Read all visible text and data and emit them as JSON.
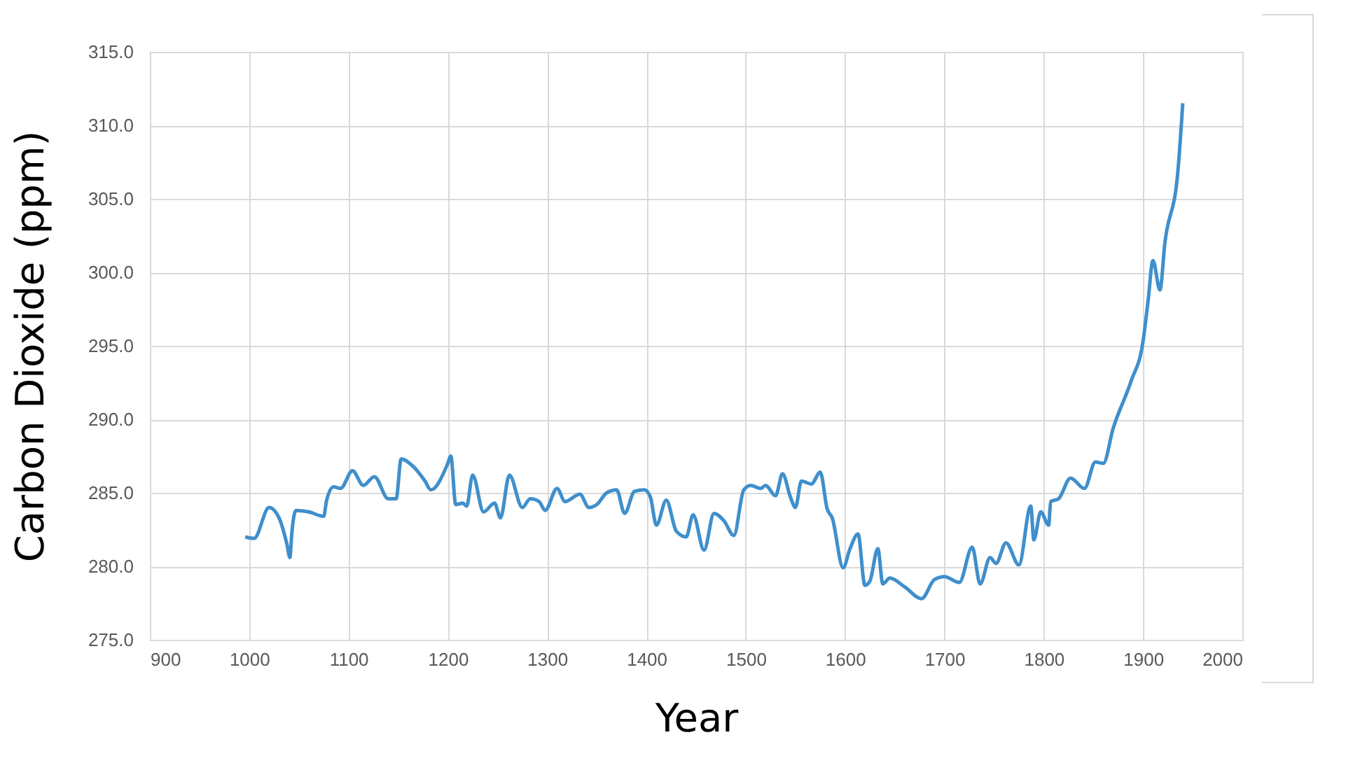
{
  "chart_data": {
    "type": "line",
    "xlabel": "Year",
    "ylabel": "Carbon Dioxide (ppm)",
    "x": [
      996,
      1005,
      1020,
      1030,
      1038,
      1041,
      1043,
      1047,
      1060,
      1075,
      1078,
      1085,
      1092,
      1104,
      1115,
      1126,
      1140,
      1148,
      1153,
      1165,
      1177,
      1183,
      1200,
      1203,
      1208,
      1215,
      1219,
      1225,
      1236,
      1247,
      1253,
      1262,
      1275,
      1283,
      1292,
      1298,
      1310,
      1318,
      1333,
      1342,
      1350,
      1360,
      1370,
      1378,
      1388,
      1398,
      1404,
      1410,
      1420,
      1430,
      1440,
      1447,
      1458,
      1468,
      1478,
      1488,
      1498,
      1505,
      1515,
      1520,
      1530,
      1537,
      1545,
      1550,
      1556,
      1566,
      1575,
      1582,
      1587,
      1598,
      1605,
      1613,
      1620,
      1625,
      1633,
      1638,
      1645,
      1660,
      1677,
      1690,
      1700,
      1715,
      1728,
      1736,
      1746,
      1752,
      1762,
      1775,
      1787,
      1790,
      1797,
      1805,
      1807,
      1815,
      1827,
      1841,
      1852,
      1860,
      1870,
      1888,
      1900,
      1905,
      1910,
      1917,
      1922,
      1935,
      1940
    ],
    "series": [
      {
        "color": "#3f8fcc",
        "values": [
          282.0,
          281.9,
          284.0,
          283.3,
          281.5,
          280.6,
          282.3,
          283.8,
          283.7,
          283.4,
          284.5,
          285.4,
          285.3,
          286.5,
          285.5,
          286.1,
          284.6,
          284.6,
          287.3,
          286.8,
          285.8,
          285.2,
          287.0,
          287.5,
          284.2,
          284.3,
          284.1,
          286.2,
          283.7,
          284.3,
          283.3,
          286.2,
          284.0,
          284.6,
          284.4,
          283.8,
          285.3,
          284.4,
          284.9,
          284.0,
          284.2,
          285.0,
          285.2,
          283.6,
          285.1,
          285.2,
          284.7,
          282.8,
          284.5,
          282.4,
          282.0,
          283.5,
          281.1,
          283.6,
          283.1,
          282.1,
          285.2,
          285.5,
          285.3,
          285.5,
          284.8,
          286.3,
          284.7,
          284.0,
          285.8,
          285.6,
          286.4,
          283.9,
          283.3,
          279.9,
          281.2,
          282.2,
          278.7,
          279.0,
          281.2,
          278.8,
          279.2,
          278.6,
          277.8,
          279.1,
          279.3,
          278.9,
          281.3,
          278.8,
          280.6,
          280.2,
          281.6,
          280.1,
          284.1,
          281.8,
          283.7,
          282.8,
          284.4,
          284.6,
          286.0,
          285.3,
          287.1,
          287.0,
          289.4,
          292.6,
          295.3,
          298.0,
          300.8,
          298.8,
          302.0,
          306.8,
          311.5
        ]
      }
    ],
    "xlim": [
      900,
      2000
    ],
    "xticks": [
      900,
      1000,
      1100,
      1200,
      1300,
      1400,
      1500,
      1600,
      1700,
      1800,
      1900,
      2000
    ],
    "ylim": [
      275,
      315
    ],
    "yticks": [
      {
        "value": 275,
        "label": "275.0"
      },
      {
        "value": 280,
        "label": "280.0"
      },
      {
        "value": 285,
        "label": "285.0"
      },
      {
        "value": 290,
        "label": "290.0"
      },
      {
        "value": 295,
        "label": "295.0"
      },
      {
        "value": 300,
        "label": "300.0"
      },
      {
        "value": 305,
        "label": "305.0"
      },
      {
        "value": 310,
        "label": "310.0"
      },
      {
        "value": 315,
        "label": "315.0"
      }
    ],
    "grid": true,
    "marker": "none",
    "line_style": "solid"
  }
}
